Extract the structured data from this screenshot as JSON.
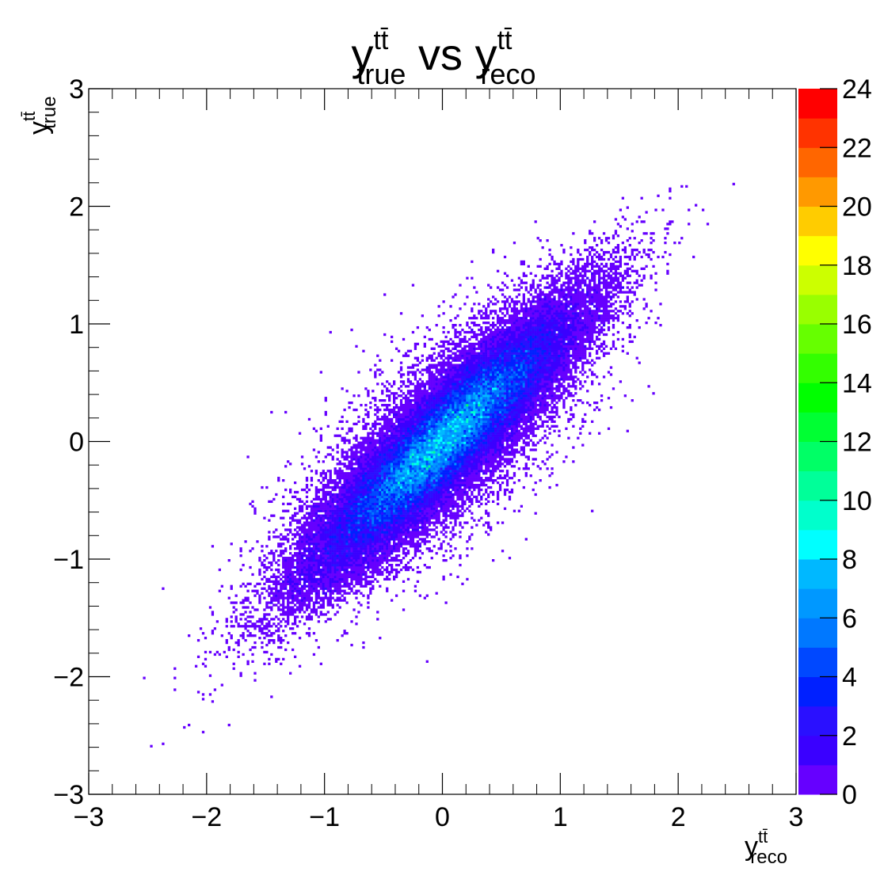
{
  "chart_data": {
    "type": "heatmap",
    "title": {
      "base": "y",
      "sup": "tt̄",
      "sub": "true",
      "middle": " vs ",
      "base2": "y",
      "sup2": "tt̄",
      "sub2": "reco"
    },
    "xlabel": {
      "base": "y",
      "sup": "tt̄",
      "sub": "reco"
    },
    "ylabel": {
      "base": "y",
      "sup": "tt̄",
      "sub": "true"
    },
    "xlim": [
      -3,
      3
    ],
    "ylim": [
      -3,
      3
    ],
    "x_ticks": [
      "−3",
      "−2",
      "−1",
      "0",
      "1",
      "2",
      "3"
    ],
    "y_ticks": [
      "−3",
      "−2",
      "−1",
      "0",
      "1",
      "2",
      "3"
    ],
    "z_range": [
      0,
      24
    ],
    "z_ticks": [
      "0",
      "2",
      "4",
      "6",
      "8",
      "10",
      "12",
      "14",
      "16",
      "18",
      "20",
      "22",
      "24"
    ],
    "distribution": {
      "description_values": "2D correlated scatter density along y_true ≈ y_reco",
      "center": [
        0.0,
        0.0
      ],
      "sigma_major": 0.78,
      "sigma_minor": 0.17,
      "angle_deg": 45,
      "peak_count": 11,
      "x_range_populated": [
        -2.6,
        2.4
      ],
      "y_range_populated": [
        -2.6,
        2.4
      ]
    },
    "grid": false,
    "colormap": [
      "#6600ff",
      "#3a00ff",
      "#2a10ff",
      "#0020ff",
      "#0048ff",
      "#0078ff",
      "#0098ff",
      "#00b8ff",
      "#00ffff",
      "#00ffcc",
      "#00ff99",
      "#00ff66",
      "#00ff33",
      "#00ff00",
      "#33ff00",
      "#66ff00",
      "#99ff00",
      "#ccff00",
      "#ffff00",
      "#ffcc00",
      "#ff9900",
      "#ff6600",
      "#ff3300",
      "#ff0000"
    ]
  }
}
